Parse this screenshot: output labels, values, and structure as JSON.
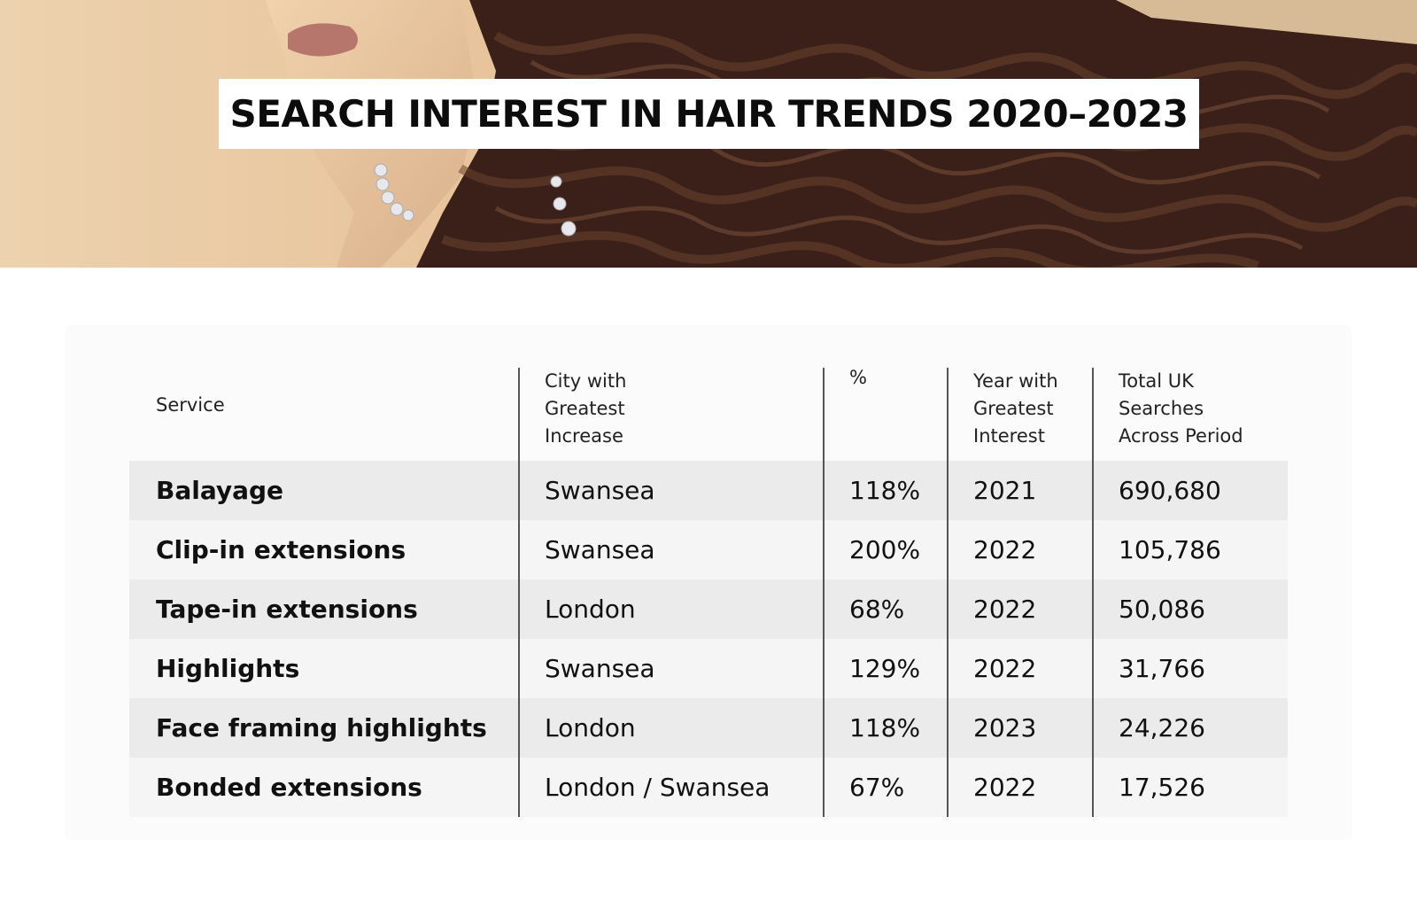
{
  "title": "SEARCH INTEREST IN HAIR TRENDS 2020–2023",
  "chart_data": {
    "type": "table",
    "columns": [
      "Service",
      "City with Greatest Increase",
      "%",
      "Year with Greatest Interest",
      "Total UK Searches Across Period"
    ],
    "header_lines": [
      [
        "Service"
      ],
      [
        "City with",
        "Greatest",
        "Increase"
      ],
      [
        "%"
      ],
      [
        "Year with",
        "Greatest",
        "Interest"
      ],
      [
        "Total UK",
        "Searches",
        "Across Period"
      ]
    ],
    "rows": [
      [
        "Balayage",
        "Swansea",
        "118%",
        "2021",
        "690,680"
      ],
      [
        "Clip-in extensions",
        "Swansea",
        "200%",
        "2022",
        "105,786"
      ],
      [
        "Tape-in extensions",
        "London",
        "68%",
        "2022",
        "50,086"
      ],
      [
        "Highlights",
        "Swansea",
        "129%",
        "2022",
        "31,766"
      ],
      [
        "Face framing highlights",
        "London",
        "118%",
        "2023",
        "24,226"
      ],
      [
        "Bonded extensions",
        "London / Swansea",
        "67%",
        "2022",
        "17,526"
      ]
    ]
  },
  "colors": {
    "row_odd": "#ebebeb",
    "row_even": "#f5f5f5",
    "title_bg": "#ffffff",
    "text": "#111111"
  }
}
